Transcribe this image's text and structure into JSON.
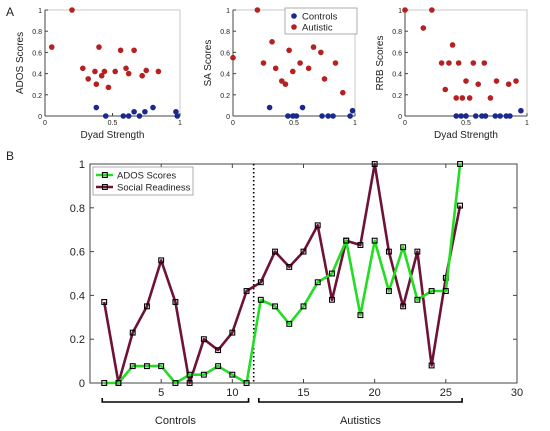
{
  "panel_labels": [
    "A",
    "B"
  ],
  "colors": {
    "controls": "#1a2a8c",
    "autistic": "#b52020",
    "ados_line": "#22dd22",
    "social_line": "#6e1238"
  },
  "chart_data": [
    {
      "type": "scatter",
      "xlabel": "Dyad Strength",
      "ylabel": "ADOS Scores",
      "xlim": [
        0,
        1
      ],
      "ylim": [
        0,
        1
      ],
      "xticks": [
        "0",
        "0.5",
        "1"
      ],
      "yticks": [
        "0",
        "0.2",
        "0.4",
        "0.6",
        "0.8",
        "1"
      ],
      "series": [
        {
          "name": "Controls",
          "points": [
            [
              0.38,
              0.08
            ],
            [
              0.45,
              0.0
            ],
            [
              0.58,
              0.0
            ],
            [
              0.62,
              0.0
            ],
            [
              0.66,
              0.04
            ],
            [
              0.7,
              0.0
            ],
            [
              0.74,
              0.04
            ],
            [
              0.8,
              0.08
            ],
            [
              0.97,
              0.04
            ],
            [
              0.98,
              0.0
            ]
          ]
        },
        {
          "name": "Autistic",
          "points": [
            [
              0.05,
              0.65
            ],
            [
              0.2,
              1.0
            ],
            [
              0.28,
              0.45
            ],
            [
              0.32,
              0.35
            ],
            [
              0.37,
              0.42
            ],
            [
              0.38,
              0.3
            ],
            [
              0.4,
              0.65
            ],
            [
              0.42,
              0.38
            ],
            [
              0.44,
              0.42
            ],
            [
              0.47,
              0.27
            ],
            [
              0.52,
              0.42
            ],
            [
              0.56,
              0.62
            ],
            [
              0.6,
              0.45
            ],
            [
              0.62,
              0.4
            ],
            [
              0.66,
              0.62
            ],
            [
              0.72,
              0.38
            ],
            [
              0.75,
              0.43
            ],
            [
              0.84,
              0.42
            ]
          ]
        }
      ]
    },
    {
      "type": "scatter",
      "xlabel": "",
      "ylabel": "SA Scores",
      "xlim": [
        0,
        1
      ],
      "ylim": [
        0,
        1
      ],
      "xticks": [
        "0",
        "0.5",
        "1"
      ],
      "yticks": [
        "0",
        "0.2",
        "0.4",
        "0.6",
        "0.8",
        "1"
      ],
      "legend": [
        "Controls",
        "Autistic"
      ],
      "legend_position": "top-right",
      "series": [
        {
          "name": "Controls",
          "points": [
            [
              0.3,
              0.08
            ],
            [
              0.45,
              0.0
            ],
            [
              0.49,
              0.0
            ],
            [
              0.52,
              0.0
            ],
            [
              0.57,
              0.08
            ],
            [
              0.73,
              0.0
            ],
            [
              0.78,
              0.0
            ],
            [
              0.82,
              0.0
            ],
            [
              0.96,
              0.0
            ],
            [
              0.98,
              0.05
            ]
          ]
        },
        {
          "name": "Autistic",
          "points": [
            [
              0.0,
              0.55
            ],
            [
              0.2,
              1.0
            ],
            [
              0.25,
              0.5
            ],
            [
              0.32,
              0.7
            ],
            [
              0.35,
              0.45
            ],
            [
              0.4,
              0.33
            ],
            [
              0.43,
              0.3
            ],
            [
              0.46,
              0.62
            ],
            [
              0.49,
              0.42
            ],
            [
              0.55,
              0.5
            ],
            [
              0.62,
              0.45
            ],
            [
              0.66,
              0.65
            ],
            [
              0.72,
              0.6
            ],
            [
              0.75,
              0.35
            ],
            [
              0.84,
              0.5
            ],
            [
              0.9,
              0.22
            ]
          ]
        }
      ]
    },
    {
      "type": "scatter",
      "xlabel": "Dyad Strength",
      "ylabel": "RRB Scores",
      "xlim": [
        0,
        1
      ],
      "ylim": [
        0,
        1
      ],
      "xticks": [
        "0",
        "0.5",
        "1"
      ],
      "yticks": [
        "0",
        "0.2",
        "0.4",
        "0.6",
        "0.8",
        "1"
      ],
      "series": [
        {
          "name": "Controls",
          "points": [
            [
              0.42,
              0.0
            ],
            [
              0.46,
              0.0
            ],
            [
              0.5,
              0.0
            ],
            [
              0.58,
              0.0
            ],
            [
              0.63,
              0.0
            ],
            [
              0.66,
              0.0
            ],
            [
              0.74,
              0.0
            ],
            [
              0.78,
              0.0
            ],
            [
              0.83,
              0.0
            ],
            [
              0.86,
              0.0
            ],
            [
              0.95,
              0.05
            ]
          ]
        },
        {
          "name": "Autistic",
          "points": [
            [
              0.0,
              1.0
            ],
            [
              0.15,
              0.83
            ],
            [
              0.22,
              1.0
            ],
            [
              0.3,
              0.5
            ],
            [
              0.33,
              0.25
            ],
            [
              0.36,
              0.5
            ],
            [
              0.39,
              0.67
            ],
            [
              0.42,
              0.17
            ],
            [
              0.44,
              0.5
            ],
            [
              0.47,
              0.17
            ],
            [
              0.5,
              0.33
            ],
            [
              0.53,
              0.17
            ],
            [
              0.56,
              0.5
            ],
            [
              0.6,
              0.3
            ],
            [
              0.65,
              0.5
            ],
            [
              0.7,
              0.17
            ],
            [
              0.75,
              0.33
            ],
            [
              0.85,
              0.3
            ],
            [
              0.91,
              0.33
            ]
          ]
        }
      ]
    },
    {
      "type": "line",
      "xlim": [
        0,
        30
      ],
      "ylim": [
        0,
        1
      ],
      "xticks": [
        "5",
        "10",
        "15",
        "20",
        "25",
        "30"
      ],
      "yticks": [
        "0",
        "0.2",
        "0.4",
        "0.6",
        "0.8",
        "1"
      ],
      "legend_position": "top-left",
      "divider_x": 11.5,
      "groups": [
        {
          "label": "Controls",
          "from": 1,
          "to": 11
        },
        {
          "label": "Autistics",
          "from": 12,
          "to": 26
        }
      ],
      "x": [
        1,
        2,
        3,
        4,
        5,
        6,
        7,
        8,
        9,
        10,
        11,
        12,
        13,
        14,
        15,
        16,
        17,
        18,
        19,
        20,
        21,
        22,
        23,
        24,
        25,
        26
      ],
      "series": [
        {
          "name": "ADOS Scores",
          "values": [
            0.0,
            0.0,
            0.077,
            0.077,
            0.077,
            0.0,
            0.038,
            0.038,
            0.077,
            0.038,
            0.0,
            0.38,
            0.35,
            0.27,
            0.35,
            0.46,
            0.5,
            0.65,
            0.31,
            0.65,
            0.42,
            0.62,
            0.38,
            0.42,
            0.42,
            1.0
          ]
        },
        {
          "name": "Social Readiness",
          "values": [
            0.37,
            0.0,
            0.23,
            0.35,
            0.56,
            0.37,
            0.0,
            0.2,
            0.15,
            0.23,
            0.42,
            0.46,
            0.6,
            0.53,
            0.6,
            0.72,
            0.38,
            0.65,
            0.63,
            1.0,
            0.6,
            0.35,
            0.6,
            0.08,
            0.48,
            0.81
          ]
        }
      ]
    }
  ]
}
